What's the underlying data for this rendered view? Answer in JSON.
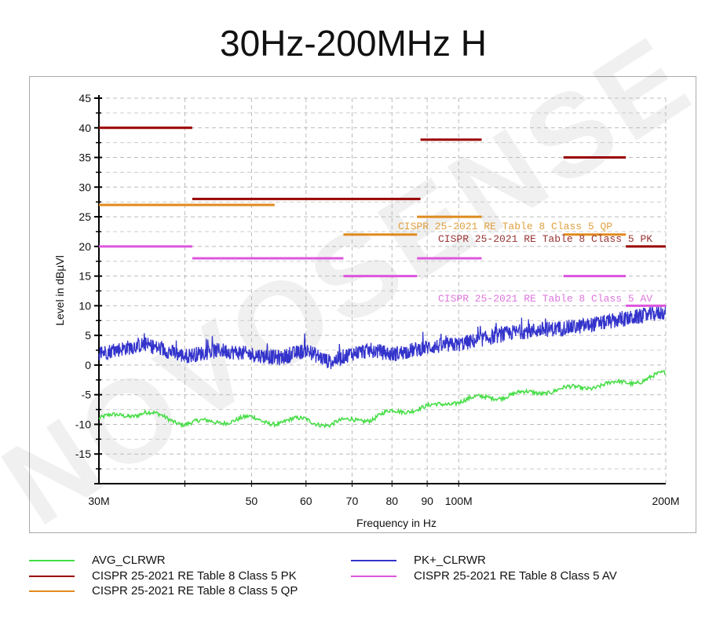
{
  "chart_data": {
    "type": "line",
    "title": "30Hz-200MHz H",
    "xlabel": "Frequency in Hz",
    "ylabel": "Level in dBµVl",
    "xscale": "log",
    "xlim": [
      30,
      200
    ],
    "ylim": [
      -20,
      45
    ],
    "grid": true,
    "x_ticks": [
      {
        "v": 30,
        "label": "30M"
      },
      {
        "v": 50,
        "label": "50"
      },
      {
        "v": 60,
        "label": "60"
      },
      {
        "v": 70,
        "label": "70"
      },
      {
        "v": 80,
        "label": "80"
      },
      {
        "v": 90,
        "label": "90"
      },
      {
        "v": 100,
        "label": "100M"
      },
      {
        "v": 200,
        "label": "200M"
      }
    ],
    "y_ticks": [
      45,
      40,
      35,
      30,
      25,
      20,
      15,
      10,
      5,
      0,
      -5,
      -10,
      -15
    ],
    "series": [
      {
        "name": "AVG_CLRWR",
        "color": "#44dd44",
        "type": "trace",
        "x": [
          30,
          35,
          40,
          45,
          50,
          55,
          60,
          65,
          70,
          75,
          80,
          90,
          100,
          120,
          150,
          180,
          200
        ],
        "y": [
          -9,
          -8,
          -9.8,
          -9.5,
          -9,
          -9.8,
          -9,
          -10.3,
          -9,
          -9.2,
          -7.8,
          -7.2,
          -6,
          -5,
          -3.8,
          -2.8,
          -1.5
        ]
      },
      {
        "name": "PK+_CLRWR",
        "color": "#3333cc",
        "type": "trace",
        "x": [
          30,
          35,
          40,
          45,
          50,
          55,
          60,
          65,
          70,
          75,
          80,
          90,
          100,
          120,
          150,
          180,
          200
        ],
        "y": [
          2,
          3.5,
          1.5,
          2.5,
          1.8,
          1.2,
          2.5,
          0.5,
          2,
          2.5,
          1.8,
          3,
          3.5,
          5.5,
          6.5,
          8,
          9
        ]
      },
      {
        "name": "CISPR 25-2021 RE Table 8 Class 5 PK",
        "color": "#990000",
        "type": "limit",
        "segments": [
          [
            30,
            41,
            40
          ],
          [
            41,
            88,
            28
          ],
          [
            88,
            108,
            38
          ],
          [
            142,
            175,
            35
          ],
          [
            175,
            200,
            20
          ]
        ]
      },
      {
        "name": "CISPR 25-2021 RE Table 8 Class 5 QP",
        "color": "#e08a1e",
        "type": "limit",
        "segments": [
          [
            30,
            54,
            27
          ],
          [
            68,
            87,
            22
          ],
          [
            87,
            108,
            25
          ],
          [
            142,
            175,
            22
          ]
        ]
      },
      {
        "name": "CISPR 25-2021 RE Table 8 Class 5 AV",
        "color": "#dd55dd",
        "type": "limit",
        "segments": [
          [
            30,
            41,
            20
          ],
          [
            41,
            68,
            18
          ],
          [
            68,
            87,
            15
          ],
          [
            87,
            108,
            18
          ],
          [
            142,
            175,
            15
          ],
          [
            175,
            200,
            10
          ]
        ]
      }
    ],
    "annotations": [
      {
        "text": "CISPR 25-2021 RE Table 8 Class 5 QP",
        "color": "#e0a040"
      },
      {
        "text": "CISPR 25-2021 RE Table 8 Class 5 PK",
        "color": "#993333"
      },
      {
        "text": "CISPR 25-2021 RE Table 8 Class 5 AV",
        "color": "#dd77dd"
      }
    ],
    "legend": {
      "placement": "bottom",
      "items": [
        "AVG_CLRWR",
        "CISPR 25-2021 RE Table 8 Class 5 PK",
        "CISPR 25-2021 RE Table 8 Class 5 QP",
        "PK+_CLRWR",
        "CISPR 25-2021 RE Table 8 Class 5 AV"
      ]
    }
  },
  "watermark": "NOVOSENSE"
}
